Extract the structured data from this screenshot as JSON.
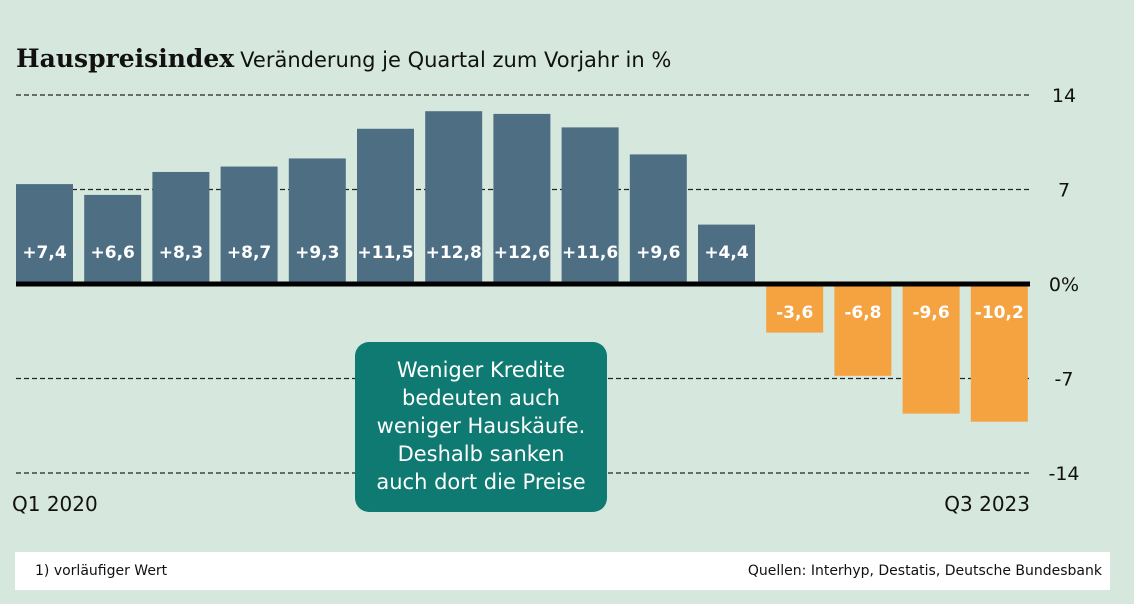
{
  "chart_data": {
    "type": "bar",
    "title": "Hauspreisindex",
    "subtitle": "Veränderung je Quartal zum Vorjahr in %",
    "values": [
      7.4,
      6.6,
      8.3,
      8.7,
      9.3,
      11.5,
      12.8,
      12.6,
      11.6,
      9.6,
      4.4,
      -3.6,
      -6.8,
      -9.6,
      -10.2
    ],
    "value_labels": [
      "+7,4",
      "+6,6",
      "+8,3",
      "+8,7",
      "+9,3",
      "+11,5",
      "+12,8",
      "+12,6",
      "+11,6",
      "+9,6",
      "+4,4",
      "-3,6",
      "-6,8",
      "-9,6",
      "-10,2"
    ],
    "x_start_label": "Q1 2020",
    "x_end_label": "Q3 2023",
    "ylim": [
      -14,
      14
    ],
    "yticks": [
      14,
      7,
      0,
      -7,
      -14
    ],
    "ytick_labels": [
      "14",
      "7",
      "0%",
      "-7",
      "-14"
    ],
    "grid": true,
    "colors": {
      "positive": "#4e6e84",
      "negative": "#f5a241",
      "background": "#d6e8dd"
    }
  },
  "callout": {
    "lines": [
      "Weniger Kredite",
      "bedeuten auch",
      "weniger Hauskäufe.",
      "Deshalb sanken",
      "auch dort die Preise"
    ]
  },
  "footer": {
    "note": "1) vorläufiger Wert",
    "sources": "Quellen: Interhyp, Destatis, Deutsche Bundesbank"
  }
}
